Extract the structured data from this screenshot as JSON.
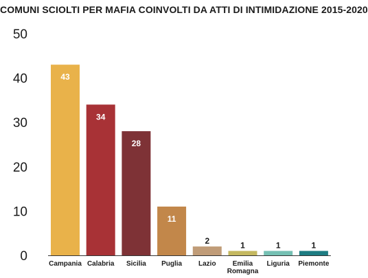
{
  "chart_data": {
    "type": "bar",
    "title": "COMUNI SCIOLTI PER MAFIA COINVOLTI DA ATTI DI INTIMIDAZIONE 2015-2020",
    "xlabel": "",
    "ylabel": "",
    "ylim": [
      0,
      50
    ],
    "yticks": [
      0,
      10,
      20,
      30,
      40,
      50
    ],
    "grid": false,
    "categories": [
      "Campania",
      "Calabria",
      "Sicilia",
      "Puglia",
      "Lazio",
      "Emilia Romagna",
      "Liguria",
      "Piemonte"
    ],
    "category_lines": [
      [
        "Campania"
      ],
      [
        "Calabria"
      ],
      [
        "Sicilia"
      ],
      [
        "Puglia"
      ],
      [
        "Lazio"
      ],
      [
        "Emilia",
        "Romagna"
      ],
      [
        "Liguria"
      ],
      [
        "Piemonte"
      ]
    ],
    "values": [
      43,
      34,
      28,
      11,
      2,
      1,
      1,
      1
    ],
    "colors": [
      "#E9B24A",
      "#A83236",
      "#7E3236",
      "#C2874A",
      "#C09C78",
      "#C4B860",
      "#75C0B3",
      "#1E7C82"
    ]
  }
}
